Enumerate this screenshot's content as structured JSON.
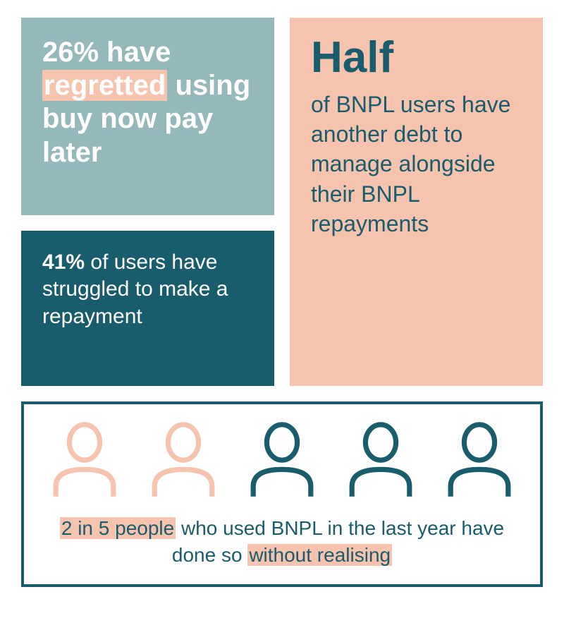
{
  "colors": {
    "teal_light": "#95b9bb",
    "teal_dark": "#195c6b",
    "pink": "#f6c3ae",
    "white": "#ffffff",
    "text_dark": "#195c6b"
  },
  "panel_a": {
    "bg": "#95b9bb",
    "text_color": "#ffffff",
    "highlight_bg": "#f6c3ae",
    "pre": "26% have ",
    "highlight": "regretted",
    "post": " using buy now pay later",
    "fontsize": 40
  },
  "panel_b": {
    "bg": "#195c6b",
    "text_color": "#ffffff",
    "bold": "41%",
    "rest": " of users have struggled to make a repayment",
    "fontsize": 30
  },
  "panel_c": {
    "bg": "#f6c3ae",
    "text_color": "#195c6b",
    "headline": "Half",
    "body": "of BNPL users have another debt to manage alongside their BNPL repayments",
    "headline_fontsize": 62,
    "body_fontsize": 32
  },
  "panel_d": {
    "border_color": "#195c6b",
    "text_color": "#195c6b",
    "people_total": 5,
    "people_highlighted": 2,
    "icon_color_highlight": "#f6c3ae",
    "icon_color_normal": "#195c6b",
    "highlight_bg": "#f6c3ae",
    "seg1_hl": "2 in 5 people",
    "seg2": " who used BNPL in the last year have done so ",
    "seg3_hl": "without realising",
    "fontsize": 28
  }
}
